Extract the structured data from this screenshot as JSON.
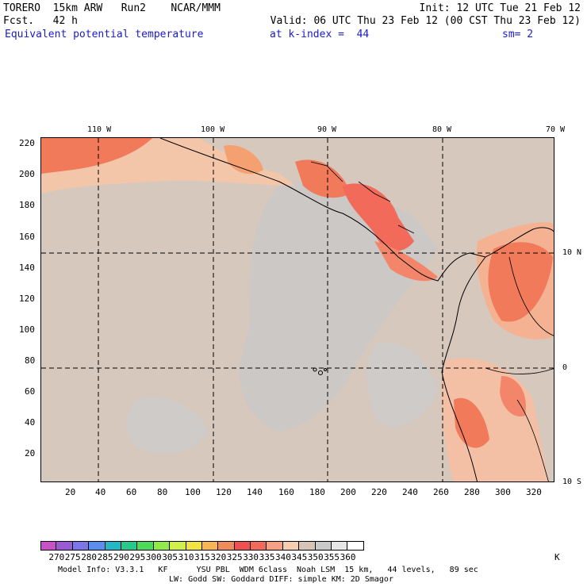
{
  "header": {
    "line1_left": "TORERO  15km ARW   Run2    NCAR/MMM",
    "line1_right": "Init: 12 UTC Tue 21 Feb 12",
    "line2_left": "Fcst.   42 h",
    "line2_right": "Valid: 06 UTC Thu 23 Feb 12 (00 CST Thu 23 Feb 12)",
    "field_name": "Equivalent potential temperature",
    "k_index": "at k-index =  44",
    "smoothing": "sm= 2"
  },
  "map": {
    "top_lon_labels": [
      "110 W",
      "100 W",
      "90 W",
      "80 W",
      "70 W"
    ],
    "right_lat_labels": [
      "10 N",
      "0",
      "10 S"
    ],
    "left_y_ticks": [
      "220",
      "200",
      "180",
      "160",
      "140",
      "120",
      "100",
      "80",
      "60",
      "40",
      "20"
    ],
    "bottom_x_ticks": [
      "20",
      "40",
      "60",
      "80",
      "100",
      "120",
      "140",
      "160",
      "180",
      "200",
      "220",
      "240",
      "260",
      "280",
      "300",
      "320"
    ]
  },
  "colorbar": {
    "labels": [
      "270",
      "275",
      "280",
      "285",
      "290",
      "295",
      "300",
      "305",
      "310",
      "315",
      "320",
      "325",
      "330",
      "335",
      "340",
      "345",
      "350",
      "355",
      "360"
    ],
    "unit": "K",
    "colors": [
      "#c853c8",
      "#9a5cd6",
      "#7a78e6",
      "#5a8ff0",
      "#22b8c8",
      "#27c98c",
      "#4bdc5a",
      "#93e84a",
      "#cdf04a",
      "#f2e244",
      "#f6b653",
      "#f28b5c",
      "#f05050",
      "#f26a5a",
      "#f7a085",
      "#f5cdb0",
      "#d8c4b4",
      "#c9c9c9",
      "#e6e6e6",
      "#ffffff"
    ]
  },
  "footer": {
    "line1": "Model Info: V3.3.1   KF      YSU PBL  WDM 6class  Noah LSM  15 km,   44 levels,   89 sec",
    "line2": "LW: Godd SW: Goddard DIFF: simple KM: 2D Smagor"
  }
}
